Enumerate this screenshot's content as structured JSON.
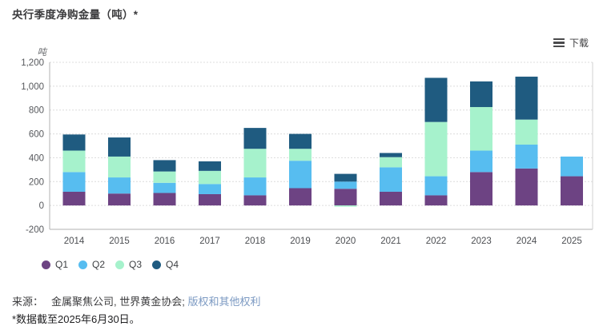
{
  "page": {
    "title": "央行季度净购金量（吨）*"
  },
  "toolbar": {
    "download_label": "下载"
  },
  "chart_data": {
    "type": "bar",
    "stacked": true,
    "title": "央行季度净购金量（吨）*",
    "unit_label": "吨",
    "categories": [
      "2014",
      "2015",
      "2016",
      "2017",
      "2018",
      "2019",
      "2020",
      "2021",
      "2022",
      "2023",
      "2024",
      "2025"
    ],
    "series": [
      {
        "name": "Q1",
        "color": "#6d4383",
        "values": [
          115,
          100,
          105,
          95,
          85,
          145,
          140,
          115,
          85,
          280,
          310,
          245
        ]
      },
      {
        "name": "Q2",
        "color": "#57bdf0",
        "values": [
          165,
          135,
          85,
          85,
          150,
          230,
          60,
          205,
          160,
          180,
          200,
          165
        ]
      },
      {
        "name": "Q3",
        "color": "#a6f2cc",
        "values": [
          180,
          175,
          95,
          110,
          240,
          100,
          -10,
          85,
          455,
          365,
          210,
          null
        ]
      },
      {
        "name": "Q4",
        "color": "#1f5b80",
        "values": [
          135,
          160,
          95,
          80,
          175,
          125,
          65,
          35,
          370,
          215,
          360,
          null
        ]
      }
    ],
    "ylim": [
      -200,
      1200
    ],
    "ytick_values": [
      1200,
      1000,
      800,
      600,
      400,
      200,
      0,
      -200
    ],
    "ytick_labels": [
      "1,200",
      "1,000",
      "800",
      "600",
      "400",
      "200",
      "0",
      "-200"
    ],
    "grid": "dotted-horizontal",
    "legend_position": "bottom-left"
  },
  "footer": {
    "source_prefix": "来源：",
    "source_text": "金属聚焦公司, 世界黄金协会;",
    "rights_link": "版权和其他权利",
    "footnote": "*数据截至2025年6月30日。"
  },
  "colors": {
    "grid_line": "#dcdcdc",
    "axis_line": "#b0b0b0",
    "right_border": "#d2d2d2",
    "link": "#7b99c2"
  }
}
